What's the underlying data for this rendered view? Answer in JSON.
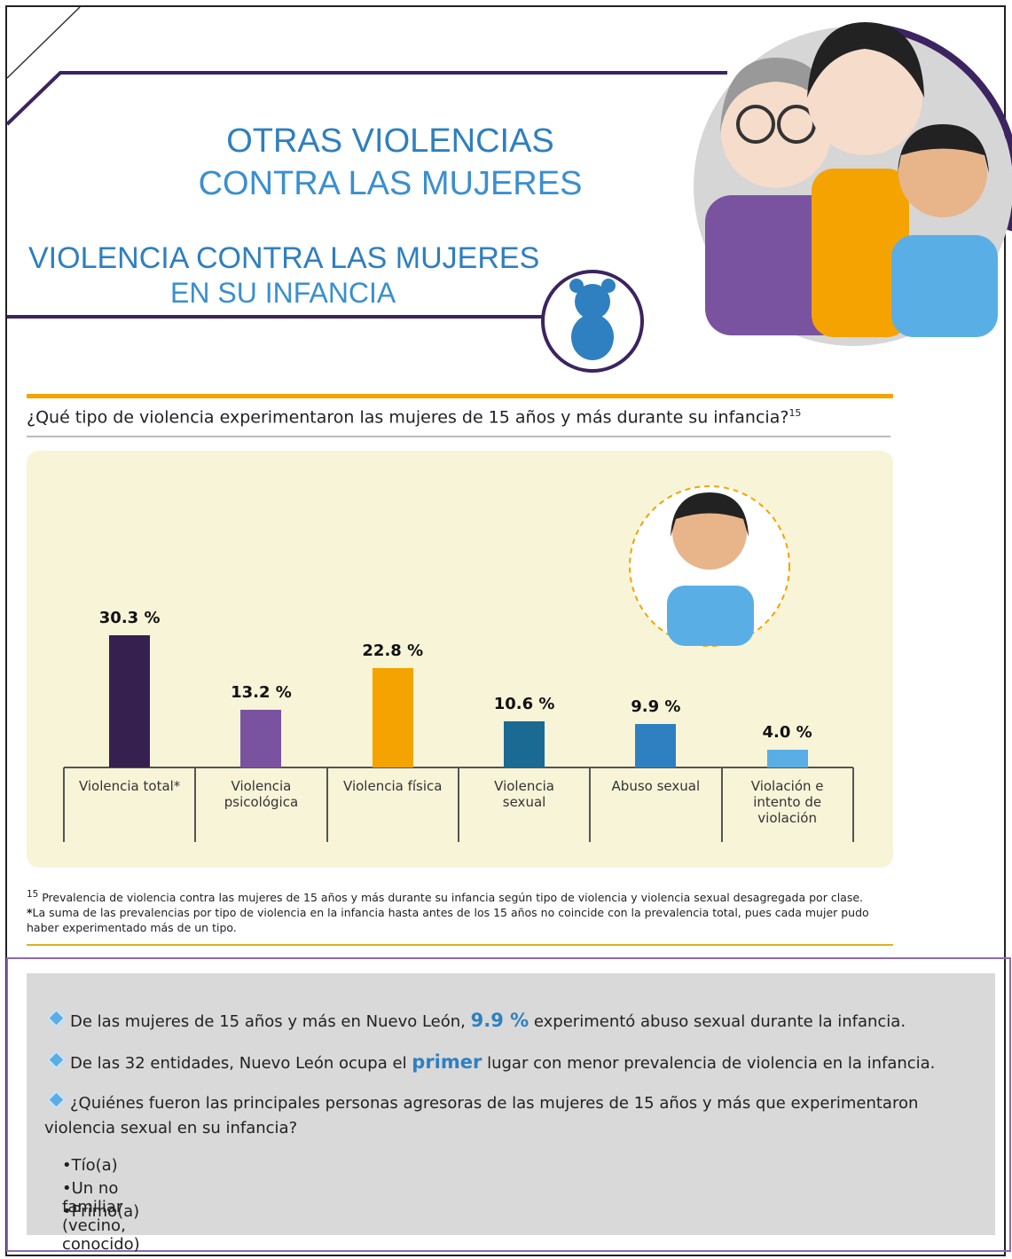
{
  "header": {
    "title_line1": "OTRAS VIOLENCIAS",
    "title_line2": "CONTRA LAS MUJERES",
    "subtitle_line1": "VIOLENCIA CONTRA LAS MUJERES",
    "subtitle_line2": "EN SU INFANCIA"
  },
  "chart_data": {
    "type": "bar",
    "title": "¿Qué tipo de violencia experimentaron las mujeres de 15 años y más durante su infancia?",
    "title_note": "15",
    "categories": [
      "Violencia total*",
      "Violencia psicológica",
      "Violencia física",
      "Violencia sexual",
      "Abuso sexual",
      "Violación e intento de violación"
    ],
    "values": [
      30.3,
      13.2,
      22.8,
      10.6,
      9.9,
      4.0
    ],
    "value_labels": [
      "30.3 %",
      "13.2 %",
      "22.8 %",
      "10.6 %",
      "9.9 %",
      "4.0 %"
    ],
    "colors": [
      "#35204f",
      "#7953a0",
      "#f5a300",
      "#1b6a94",
      "#2f80c1",
      "#5aaee6"
    ]
  },
  "footnotes": [
    {
      "marker": "15",
      "text": "Prevalencia de violencia contra las mujeres de 15 años y más durante su infancia según tipo de violencia y violencia sexual desagregada por clase."
    },
    {
      "marker": "*",
      "text": "La suma de las prevalencias por tipo de violencia en la infancia hasta antes de los 15 años no coincide con la prevalencia total, pues cada mujer pudo haber experimentado más de un tipo."
    }
  ],
  "highlights": {
    "items": [
      [
        "De las mujeres de 15 años y más en Nuevo León, ",
        "9.9 %",
        " experimentó abuso sexual durante la infancia."
      ],
      [
        "De las 32 entidades, Nuevo León ocupa el ",
        "primer",
        " lugar con menor prevalencia de violencia en la infancia."
      ],
      [
        "¿Quiénes fueron las principales personas agresoras de las mujeres de 15 años y más que experimentaron violencia sexual en su infancia?"
      ]
    ],
    "aggressors": [
      "Tío(a)",
      "Un no familiar (vecino, conocido)",
      "Primo(a)"
    ]
  }
}
